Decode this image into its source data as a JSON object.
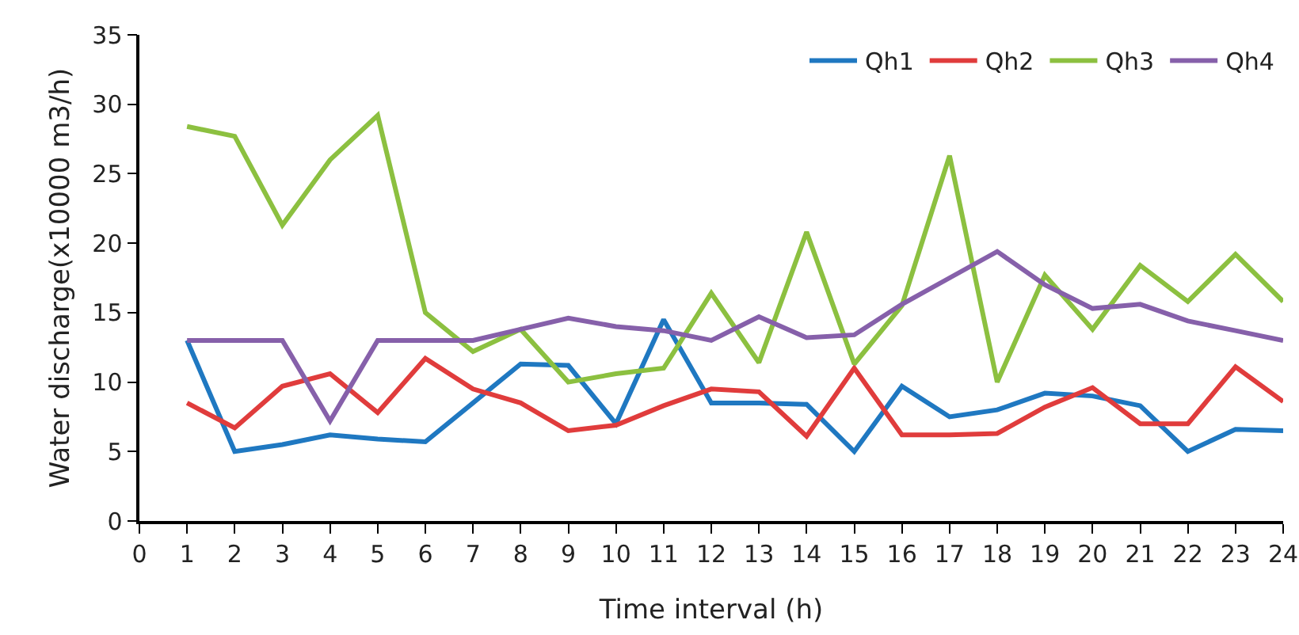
{
  "chart_data": {
    "type": "line",
    "xlabel": "Time interval (h)",
    "ylabel": "Water discharge(x10000 m3/h)",
    "x": [
      1,
      2,
      3,
      4,
      5,
      6,
      7,
      8,
      9,
      10,
      11,
      12,
      13,
      14,
      15,
      16,
      17,
      18,
      19,
      20,
      21,
      22,
      23,
      24
    ],
    "xlim": [
      0,
      24
    ],
    "xticks": [
      0,
      1,
      2,
      3,
      4,
      5,
      6,
      7,
      8,
      9,
      10,
      11,
      12,
      13,
      14,
      15,
      16,
      17,
      18,
      19,
      20,
      21,
      22,
      23,
      24
    ],
    "ylim": [
      0,
      35
    ],
    "yticks": [
      0,
      5,
      10,
      15,
      20,
      25,
      30,
      35
    ],
    "grid": false,
    "legend": "top right",
    "marker": "none",
    "line_style": "solid",
    "series": [
      {
        "name": "Qh1",
        "color": "#1f78c1",
        "values": [
          13,
          5,
          5.5,
          6.2,
          5.9,
          5.7,
          8.5,
          11.3,
          11.2,
          7,
          14.5,
          8.5,
          8.5,
          8.4,
          5,
          9.7,
          7.5,
          8,
          9.2,
          9,
          8.3,
          5,
          6.6,
          6.5
        ]
      },
      {
        "name": "Qh2",
        "color": "#e03c3c",
        "values": [
          8.5,
          6.7,
          9.7,
          10.6,
          7.8,
          11.7,
          9.5,
          8.5,
          6.5,
          6.9,
          8.3,
          9.5,
          9.3,
          6.1,
          11,
          6.2,
          6.2,
          6.3,
          8.2,
          9.6,
          7,
          7,
          11.1,
          8.6
        ]
      },
      {
        "name": "Qh3",
        "color": "#8cc040",
        "values": [
          28.4,
          27.7,
          21.3,
          26,
          29.2,
          15,
          12.2,
          13.8,
          10,
          10.6,
          11,
          16.4,
          11.4,
          20.8,
          11.3,
          15.5,
          26.3,
          10,
          17.7,
          13.8,
          18.4,
          15.8,
          19.2,
          15.8
        ]
      },
      {
        "name": "Qh4",
        "color": "#8660aa",
        "values": [
          13,
          13,
          13,
          7.2,
          13,
          13,
          13,
          13.8,
          14.6,
          14,
          13.7,
          13,
          14.7,
          13.2,
          13.4,
          15.6,
          17.5,
          19.4,
          17,
          15.3,
          15.6,
          14.4,
          13.7,
          13
        ]
      }
    ]
  }
}
